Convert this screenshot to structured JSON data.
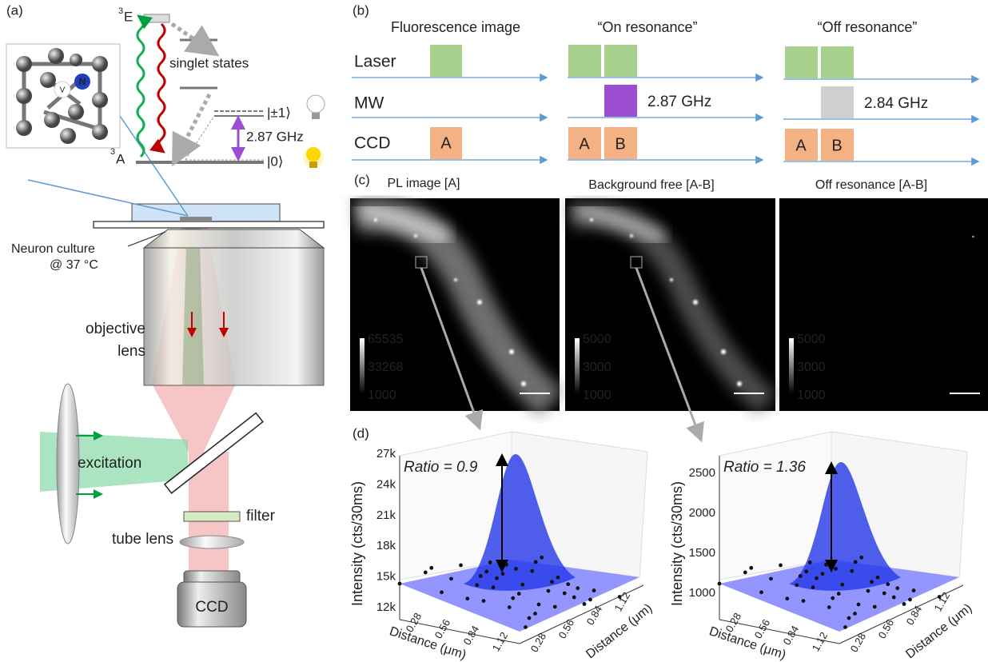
{
  "panel_a": {
    "label": "(a)",
    "level_e_sup": "3",
    "level_e": "E",
    "singlet": "singlet states",
    "level_pm1": "|±1⟩",
    "transition": "2.87 GHz",
    "level_0": "|0⟩",
    "level_a_sup": "3",
    "level_a": "A",
    "atom_v": "V",
    "atom_n": "N",
    "sample": "Neuron culture",
    "temperature": "@ 37 °C",
    "objective": [
      "objective",
      "lens"
    ],
    "excitation": "excitation",
    "filter": "filter",
    "tube_lens": "tube lens",
    "camera": "CCD"
  },
  "panel_b": {
    "label": "(b)",
    "columns": [
      "Fluorescence image",
      "“On resonance”",
      "“Off resonance”"
    ],
    "rows": [
      "Laser",
      "MW",
      "CCD"
    ],
    "frame_a": "A",
    "frame_b": "B",
    "mw_on": "2.87 GHz",
    "mw_off": "2.84 GHz"
  },
  "panel_c": {
    "label": "(c)",
    "images": [
      {
        "title": "PL image [A]",
        "colorbar": [
          "65535",
          "33268",
          "1000"
        ]
      },
      {
        "title": "Background free [A-B]",
        "colorbar": [
          "5000",
          "3000",
          "1000"
        ]
      },
      {
        "title": "Off resonance [A-B]",
        "colorbar": [
          "5000",
          "3000",
          "1000"
        ]
      }
    ]
  },
  "panel_d": {
    "label": "(d)",
    "plots": [
      {
        "z_label": "Intensity (cts/30ms)",
        "z_ticks": [
          "12k",
          "15k",
          "18k",
          "21k",
          "24k",
          "27k"
        ],
        "ratio": "Ratio = 0.9",
        "x_label": "Distance (μm)",
        "y_label": "Distance (μm)",
        "x_ticks": [
          "0.28",
          "0.56",
          "0.84",
          "1.12"
        ],
        "y_ticks": [
          "0.28",
          "0.56",
          "0.84",
          "1.12"
        ]
      },
      {
        "z_label": "Intensity (cts/30ms)",
        "z_ticks": [
          "1000",
          "1500",
          "2000",
          "2500"
        ],
        "ratio": "Ratio = 1.36",
        "x_label": "Distance (μm)",
        "y_label": "Distance (μm)",
        "x_ticks": [
          "0.28",
          "0.56",
          "0.84",
          "1.12"
        ],
        "y_ticks": [
          "0.28",
          "0.56",
          "0.84",
          "1.12"
        ]
      }
    ]
  }
}
